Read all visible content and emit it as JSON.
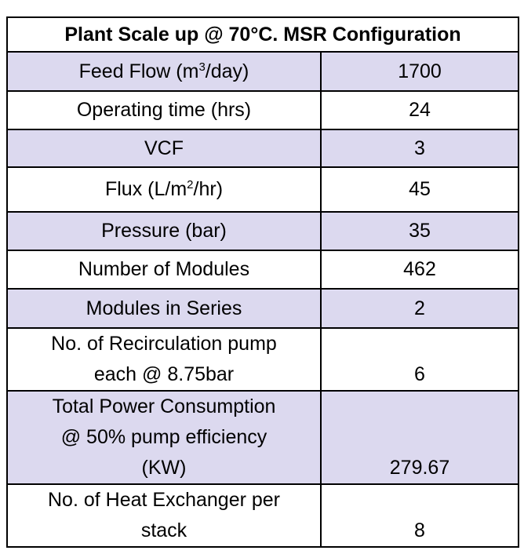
{
  "table": {
    "title": "Plant Scale up @ 70°C. MSR Configuration",
    "rows": [
      {
        "label_pre": "Feed Flow (m",
        "label_sup": "3",
        "label_post": "/day)",
        "value": "1700",
        "shade": true
      },
      {
        "label_pre": "Operating time (hrs)",
        "label_sup": "",
        "label_post": "",
        "value": "24",
        "shade": false
      },
      {
        "label_pre": "VCF",
        "label_sup": "",
        "label_post": "",
        "value": "3",
        "shade": true
      },
      {
        "label_pre": "Flux (L/m",
        "label_sup": "2",
        "label_post": "/hr)",
        "value": "45",
        "shade": false
      },
      {
        "label_pre": "Pressure (bar)",
        "label_sup": "",
        "label_post": "",
        "value": "35",
        "shade": true
      },
      {
        "label_pre": "Number of Modules",
        "label_sup": "",
        "label_post": "",
        "value": "462",
        "shade": false
      },
      {
        "label_pre": "Modules in Series",
        "label_sup": "",
        "label_post": "",
        "value": "2",
        "shade": true
      },
      {
        "label_lines": [
          "No. of Recirculation pump",
          "each @ 8.75bar"
        ],
        "value": "6",
        "shade": false
      },
      {
        "label_lines": [
          "Total Power Consumption",
          "@ 50% pump efficiency",
          "(KW)"
        ],
        "value": "279.67",
        "shade": true
      },
      {
        "label_lines": [
          "No. of Heat Exchanger per",
          "stack"
        ],
        "value": "8",
        "shade": false
      }
    ]
  }
}
